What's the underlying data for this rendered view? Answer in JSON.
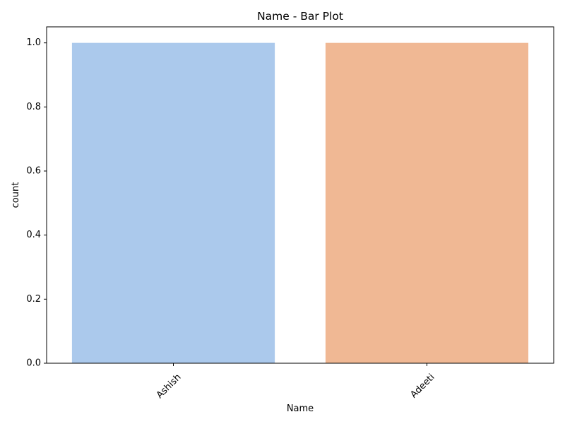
{
  "chart_data": {
    "type": "bar",
    "title": "Name - Bar Plot",
    "xlabel": "Name",
    "ylabel": "count",
    "categories": [
      "Ashish",
      "Adeeti"
    ],
    "values": [
      1,
      1
    ],
    "colors": [
      "#abc9ec",
      "#f0b894"
    ],
    "ylim": [
      0,
      1.05
    ],
    "yticks": [
      "0.0",
      "0.2",
      "0.4",
      "0.6",
      "0.8",
      "1.0"
    ],
    "ytick_values": [
      0,
      0.2,
      0.4,
      0.6,
      0.8,
      1.0
    ],
    "xtick_rotation_deg": 45,
    "grid": false,
    "legend": "none"
  }
}
